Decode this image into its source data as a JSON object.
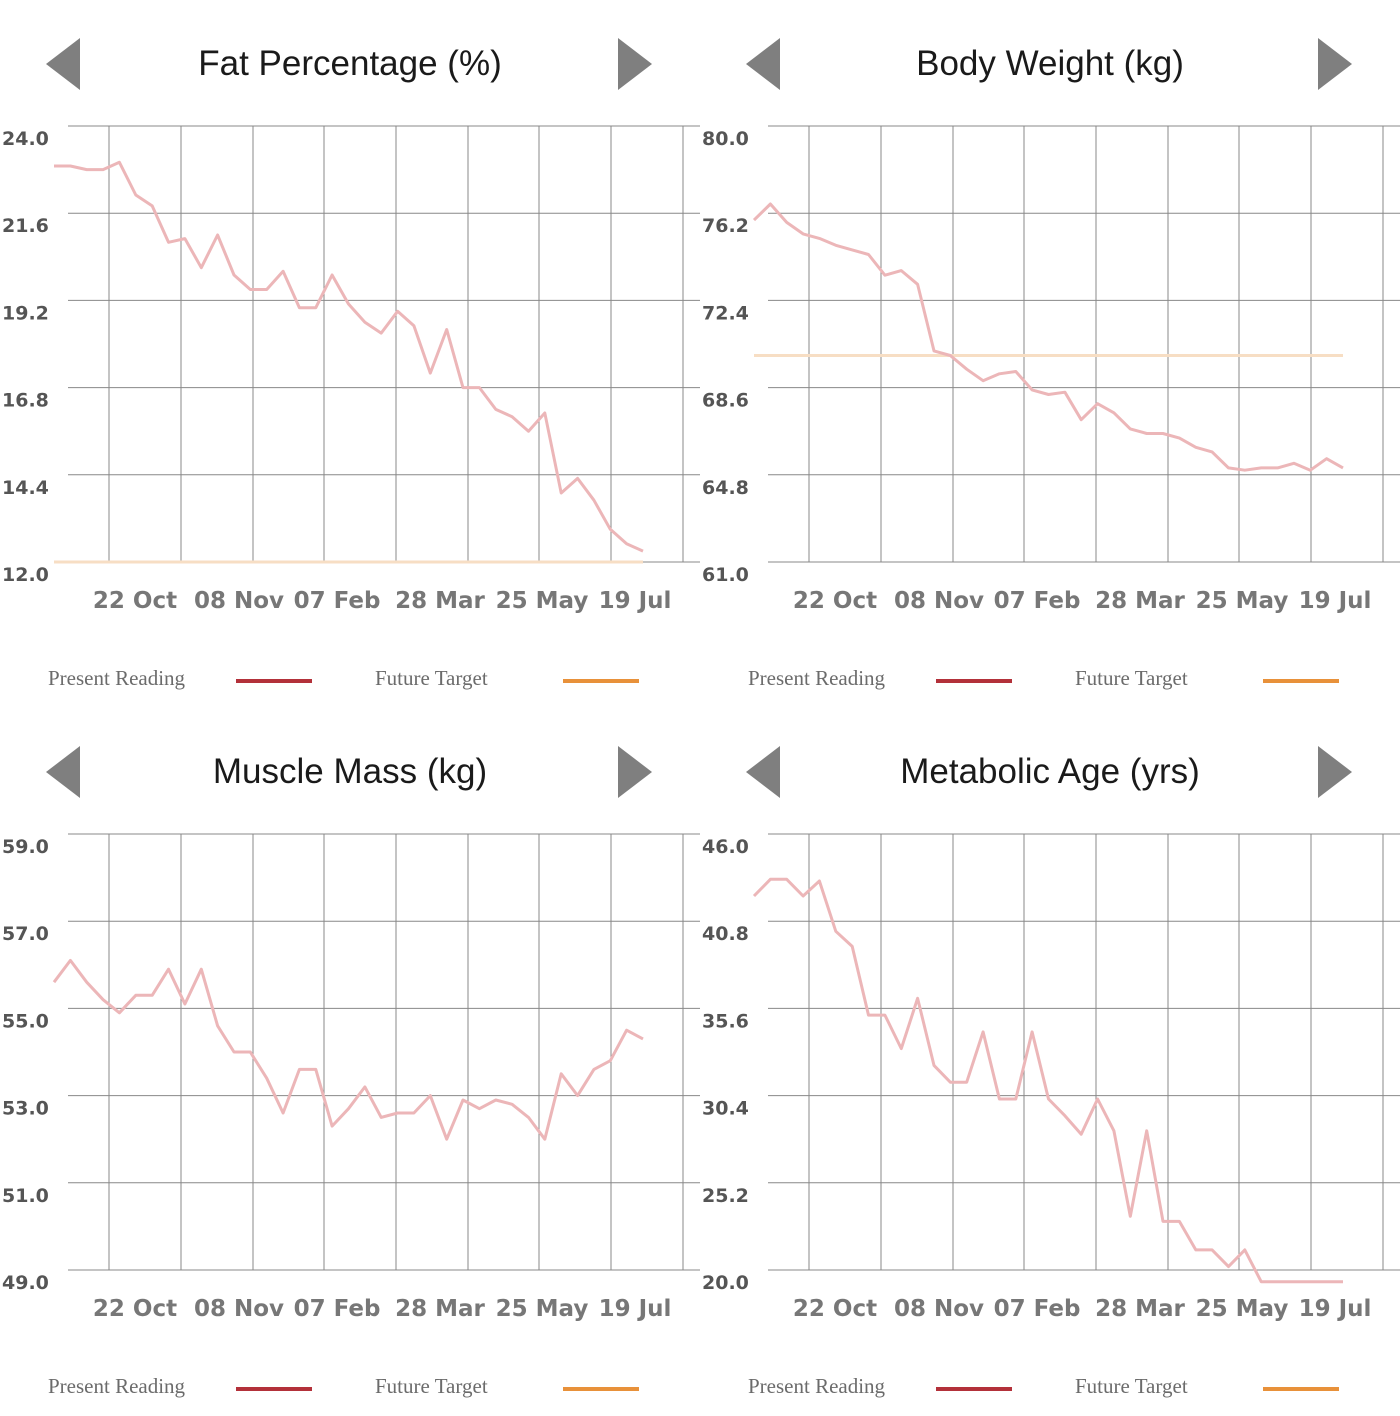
{
  "legend": {
    "present": {
      "label": "Present Reading",
      "color": "#b3313a"
    },
    "target": {
      "label": "Future Target",
      "color": "#e8913a"
    }
  },
  "colors": {
    "line": "#ecb6b8",
    "target": "#f7dec4",
    "grid": "#888888"
  },
  "x_ticks": [
    "22 Oct",
    "08 Nov",
    "07 Feb",
    "28 Mar",
    "25 May",
    "19 Jul"
  ],
  "panels": [
    {
      "title": "Fat Percentage (%)"
    },
    {
      "title": "Body Weight (kg)"
    },
    {
      "title": "Muscle Mass (kg)"
    },
    {
      "title": "Metabolic Age (yrs)"
    }
  ],
  "chart_data": [
    {
      "type": "line",
      "title": "Fat Percentage (%)",
      "yticks": [
        "24.0",
        "21.6",
        "19.2",
        "16.8",
        "14.4",
        "12.0"
      ],
      "ylim": [
        12.0,
        24.0
      ],
      "target": 12.0,
      "values": [
        22.9,
        22.9,
        22.8,
        22.8,
        23.0,
        22.1,
        21.8,
        20.8,
        20.9,
        20.1,
        21.0,
        19.9,
        19.5,
        19.5,
        20.0,
        19.0,
        19.0,
        19.9,
        19.1,
        18.6,
        18.3,
        18.9,
        18.5,
        17.2,
        18.4,
        16.8,
        16.8,
        16.2,
        16.0,
        15.6,
        16.1,
        13.9,
        14.3,
        13.7,
        12.9,
        12.5,
        12.3
      ],
      "series_name": "Present Reading"
    },
    {
      "type": "line",
      "title": "Body Weight (kg)",
      "yticks": [
        "80.0",
        "76.2",
        "72.4",
        "68.6",
        "64.8",
        "61.0"
      ],
      "ylim": [
        61.0,
        80.0
      ],
      "target": 70.0,
      "values": [
        75.9,
        76.6,
        75.8,
        75.3,
        75.1,
        74.8,
        74.6,
        74.4,
        73.5,
        73.7,
        73.1,
        70.2,
        70.0,
        69.4,
        68.9,
        69.2,
        69.3,
        68.5,
        68.3,
        68.4,
        67.2,
        67.9,
        67.5,
        66.8,
        66.6,
        66.6,
        66.4,
        66.0,
        65.8,
        65.1,
        65.0,
        65.1,
        65.1,
        65.3,
        65.0,
        65.5,
        65.1
      ],
      "series_name": "Present Reading"
    },
    {
      "type": "line",
      "title": "Muscle Mass (kg)",
      "yticks": [
        "59.0",
        "57.0",
        "55.0",
        "53.0",
        "51.0",
        "49.0"
      ],
      "ylim": [
        49.0,
        59.0
      ],
      "target": null,
      "values": [
        55.6,
        56.1,
        55.6,
        55.2,
        54.9,
        55.3,
        55.3,
        55.9,
        55.1,
        55.9,
        54.6,
        54.0,
        54.0,
        53.4,
        52.6,
        53.6,
        53.6,
        52.3,
        52.7,
        53.2,
        52.5,
        52.6,
        52.6,
        53.0,
        52.0,
        52.9,
        52.7,
        52.9,
        52.8,
        52.5,
        52.0,
        53.5,
        53.0,
        53.6,
        53.8,
        54.5,
        54.3
      ],
      "series_name": "Present Reading"
    },
    {
      "type": "line",
      "title": "Metabolic Age (yrs)",
      "yticks": [
        "46.0",
        "40.8",
        "35.6",
        "30.4",
        "25.2",
        "20.0"
      ],
      "ylim": [
        20.0,
        46.0
      ],
      "target": null,
      "values": [
        42.3,
        43.3,
        43.3,
        42.3,
        43.2,
        40.2,
        39.3,
        35.2,
        35.2,
        33.2,
        36.2,
        32.2,
        31.2,
        31.2,
        34.2,
        30.2,
        30.2,
        34.2,
        30.2,
        29.2,
        28.1,
        30.2,
        28.3,
        23.2,
        28.3,
        22.9,
        22.9,
        21.2,
        21.2,
        20.2,
        21.2,
        19.3,
        19.3,
        19.3,
        19.3,
        19.3,
        19.3
      ],
      "series_name": "Present Reading"
    }
  ]
}
